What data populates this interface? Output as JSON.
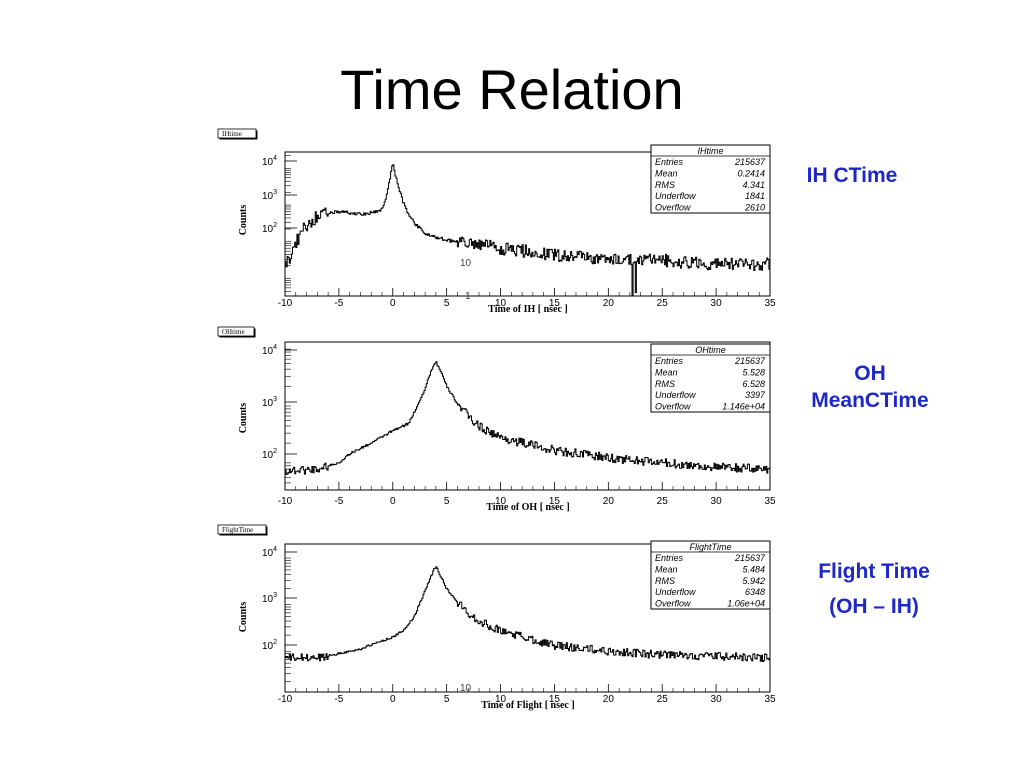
{
  "slide": {
    "title": "Time Relation",
    "labels": [
      {
        "lines": [
          "IH CTime"
        ]
      },
      {
        "lines": [
          "OH",
          "MeanCTime"
        ]
      },
      {
        "lines": [
          "Flight Time",
          "(OH – IH)"
        ]
      }
    ]
  },
  "colors": {
    "label": "#1e28c8",
    "line": "#000000",
    "background": "#ffffff"
  },
  "chart_data": [
    {
      "type": "line",
      "histogram_name": "IHtime",
      "xlabel": "Time of IH [ nsec ]",
      "ylabel": "Counts",
      "xlim": [
        -10,
        35
      ],
      "ylim": [
        3,
        25000
      ],
      "log_y": true,
      "xticks": [
        "-10",
        "-5",
        "0",
        "5",
        "10",
        "15",
        "20",
        "25",
        "30",
        "35"
      ],
      "yticks": [
        {
          "base": "10",
          "exp": "4"
        },
        {
          "base": "10",
          "exp": "3"
        },
        {
          "base": "10",
          "exp": "2"
        }
      ],
      "stray_labels": [
        "10",
        "1"
      ],
      "stats": {
        "title": "IHtime",
        "rows": [
          [
            "Entries",
            "215637"
          ],
          [
            "Mean",
            "0.2414"
          ],
          [
            "RMS",
            "4.341"
          ],
          [
            "Underflow",
            "1841"
          ],
          [
            "Overflow",
            "2610"
          ]
        ]
      },
      "curve": {
        "x": [
          -10,
          -9.5,
          -9,
          -8.5,
          -8,
          -7,
          -6,
          -5,
          -4,
          -3,
          -2,
          -1,
          -0.5,
          0,
          0.5,
          1,
          1.5,
          2,
          3,
          4,
          5,
          7,
          10,
          15,
          20,
          25,
          30,
          35
        ],
        "y": [
          20,
          35,
          80,
          150,
          250,
          450,
          520,
          600,
          550,
          500,
          550,
          650,
          2000,
          12000,
          3000,
          1000,
          500,
          300,
          150,
          120,
          100,
          80,
          60,
          40,
          30,
          28,
          22,
          22
        ]
      },
      "noise": 0.5
    },
    {
      "type": "line",
      "histogram_name": "OHtime",
      "xlabel": "Time of OH [ nsec ]",
      "ylabel": "Counts",
      "xlim": [
        -10,
        35
      ],
      "ylim": [
        30,
        12000
      ],
      "log_y": true,
      "xticks": [
        "-10",
        "-5",
        "0",
        "5",
        "10",
        "15",
        "20",
        "25",
        "30",
        "35"
      ],
      "yticks": [
        {
          "base": "10",
          "exp": "4"
        },
        {
          "base": "10",
          "exp": "3"
        },
        {
          "base": "10",
          "exp": "2"
        }
      ],
      "stray_labels": [],
      "stats": {
        "title": "OHtime",
        "rows": [
          [
            "Entries",
            "215637"
          ],
          [
            "Mean",
            "5.528"
          ],
          [
            "RMS",
            "6.528"
          ],
          [
            "Underflow",
            "3397"
          ],
          [
            "Overflow",
            "1.146e+04"
          ]
        ]
      },
      "curve": {
        "x": [
          -10,
          -7,
          -5,
          -4,
          -2,
          0,
          1,
          1.5,
          2,
          3,
          3.5,
          4,
          4.5,
          5,
          6,
          7,
          8,
          10,
          15,
          20,
          25,
          30,
          35
        ],
        "y": [
          65,
          70,
          90,
          130,
          200,
          330,
          400,
          450,
          700,
          1800,
          3500,
          5500,
          3500,
          2000,
          1000,
          600,
          400,
          250,
          150,
          110,
          90,
          75,
          70
        ]
      },
      "noise": 0.22
    },
    {
      "type": "line",
      "histogram_name": "FlightTime",
      "xlabel": "Time of Flight [ nsec ]",
      "ylabel": "Counts",
      "xlim": [
        -10,
        35
      ],
      "ylim": [
        12,
        18000
      ],
      "log_y": true,
      "xticks": [
        "-10",
        "-5",
        "0",
        "5",
        "10",
        "15",
        "20",
        "25",
        "30",
        "35"
      ],
      "yticks": [
        {
          "base": "10",
          "exp": "4"
        },
        {
          "base": "10",
          "exp": "3"
        },
        {
          "base": "10",
          "exp": "2"
        }
      ],
      "stray_labels": [
        "10"
      ],
      "stats": {
        "title": "FlightTime",
        "rows": [
          [
            "Entries",
            "215637"
          ],
          [
            "Mean",
            "5.484"
          ],
          [
            "RMS",
            "5.942"
          ],
          [
            "Underflow",
            "6348"
          ],
          [
            "Overflow",
            "1.06e+04"
          ]
        ]
      },
      "curve": {
        "x": [
          -10,
          -7,
          -5,
          -3,
          -1,
          0,
          1,
          2,
          3,
          3.5,
          4,
          4.5,
          5,
          6,
          7,
          8,
          10,
          15,
          20,
          25,
          30,
          35
        ],
        "y": [
          65,
          65,
          80,
          100,
          150,
          180,
          250,
          500,
          1800,
          3500,
          6000,
          3500,
          2000,
          1000,
          600,
          400,
          250,
          120,
          90,
          75,
          70,
          65
        ]
      },
      "noise": 0.25
    }
  ]
}
